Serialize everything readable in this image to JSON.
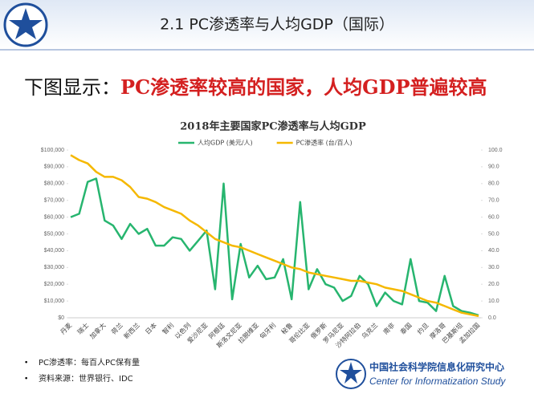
{
  "header": {
    "title": "2.1 PC渗透率与人均GDP（国际）"
  },
  "headline": {
    "prefix": "下图显示：",
    "highlight": "PC渗透率较高的国家，人均GDP普遍较高"
  },
  "chart_data": {
    "type": "line",
    "title": "2018年主要国家PC渗透率与人均GDP",
    "categories": [
      "丹麦",
      null,
      "瑞士",
      null,
      "加拿大",
      null,
      "荷兰",
      null,
      "新西兰",
      null,
      "日本",
      null,
      "智利",
      null,
      "以色列",
      null,
      "爱沙尼亚",
      null,
      "阿根廷",
      null,
      "斯洛文尼亚",
      null,
      "拉脱维亚",
      null,
      "匈牙利",
      null,
      "秘鲁",
      null,
      "哥伦比亚",
      null,
      "俄罗斯",
      null,
      "罗马尼亚",
      null,
      "沙特阿拉伯",
      null,
      "乌克兰",
      null,
      "南非",
      null,
      "泰国",
      null,
      "约旦",
      null,
      "摩洛哥",
      null,
      "巴基斯坦",
      null,
      "孟加拉国"
    ],
    "series": [
      {
        "name": "人均GDP (美元/人)",
        "color": "#27b56f",
        "axis": "y",
        "values": [
          60000,
          62000,
          81000,
          83000,
          58000,
          55000,
          47000,
          56000,
          50000,
          53000,
          43000,
          43000,
          48000,
          47000,
          40000,
          46000,
          52000,
          17000,
          80000,
          11000,
          44000,
          24000,
          31000,
          23000,
          24000,
          35000,
          11000,
          69000,
          17000,
          29000,
          20000,
          18000,
          10000,
          13000,
          25000,
          20000,
          7000,
          15000,
          10000,
          8000,
          35000,
          10000,
          9000,
          4000,
          25000,
          7000,
          4000,
          3000,
          1500
        ]
      },
      {
        "name": "PC渗透率 (台/百人)",
        "color": "#f5b800",
        "axis": "y2",
        "values": [
          97,
          94,
          92,
          87,
          84,
          84,
          82,
          78,
          72,
          71,
          69,
          66,
          64,
          62,
          58,
          55,
          51,
          47,
          45,
          43,
          42,
          40,
          38,
          36,
          34,
          32,
          30,
          29,
          27,
          26,
          25,
          24,
          23,
          22,
          22,
          21,
          20,
          18,
          17,
          16,
          14,
          12,
          10,
          9,
          7,
          5,
          3,
          2,
          1
        ]
      }
    ],
    "ylim": [
      0,
      100000
    ],
    "yticks": [
      {
        "value": 0,
        "label": "$0"
      },
      {
        "value": 10000,
        "label": "$10,000"
      },
      {
        "value": 20000,
        "label": "$20,000"
      },
      {
        "value": 30000,
        "label": "$30,000"
      },
      {
        "value": 40000,
        "label": "$40,000"
      },
      {
        "value": 50000,
        "label": "$50,000"
      },
      {
        "value": 60000,
        "label": "$60,000"
      },
      {
        "value": 70000,
        "label": "$70,000"
      },
      {
        "value": 80000,
        "label": "$80,000"
      },
      {
        "value": 90000,
        "label": "$90,000"
      },
      {
        "value": 100000,
        "label": "$100,000"
      }
    ],
    "y2lim": [
      0,
      100
    ],
    "y2ticks": [
      {
        "value": 0,
        "label": "0.0"
      },
      {
        "value": 10,
        "label": "10.0"
      },
      {
        "value": 20,
        "label": "20.0"
      },
      {
        "value": 30,
        "label": "30.0"
      },
      {
        "value": 40,
        "label": "40.0"
      },
      {
        "value": 50,
        "label": "50.0"
      },
      {
        "value": 60,
        "label": "60.0"
      },
      {
        "value": 70,
        "label": "70.0"
      },
      {
        "value": 80,
        "label": "80.0"
      },
      {
        "value": 90,
        "label": "90.0"
      },
      {
        "value": 100,
        "label": "100.0"
      }
    ],
    "grid": false,
    "legend": "top"
  },
  "notes": [
    "PC渗透率：每百人PC保有量",
    "资料来源：世界银行、IDC"
  ],
  "footer": {
    "org_cn": "中国社会科学院信息化研究中心",
    "org_en": "Center for Informatization Study"
  }
}
